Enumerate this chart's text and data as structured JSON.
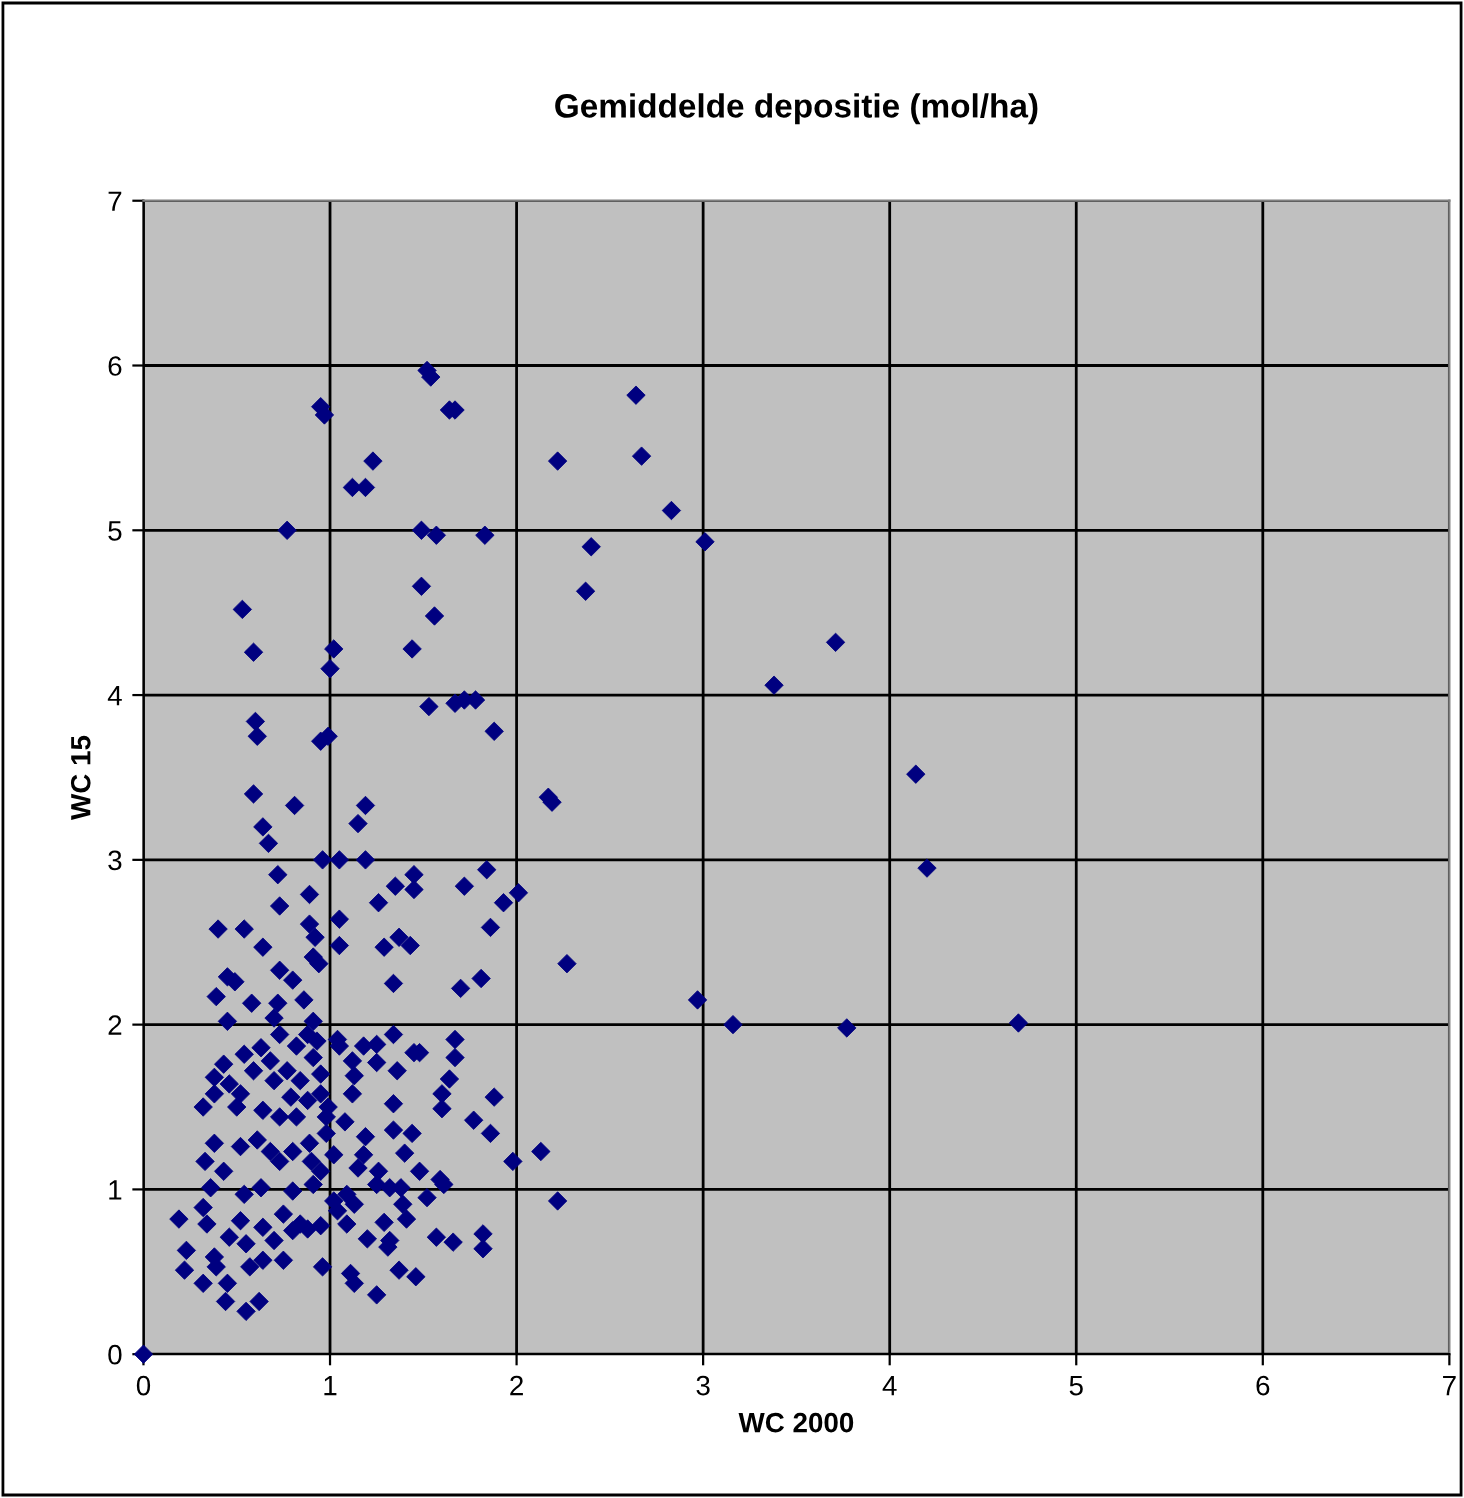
{
  "chart_data": {
    "type": "scatter",
    "title": "Gemiddelde depositie (mol/ha)",
    "xlabel": "WC 2000",
    "ylabel": "WC 15",
    "xlim": [
      0,
      7
    ],
    "ylim": [
      0,
      7
    ],
    "xticks": [
      0,
      1,
      2,
      3,
      4,
      5,
      6,
      7
    ],
    "yticks": [
      0,
      1,
      2,
      3,
      4,
      5,
      6,
      7
    ],
    "grid": true,
    "marker": "diamond",
    "series": [
      {
        "color": "#000080",
        "x": [
          0.95,
          0.97,
          1.52,
          1.54,
          1.64,
          1.67,
          1.23,
          1.12,
          1.19,
          0.77,
          1.49,
          1.57,
          1.83,
          0.53,
          1.49,
          1.56,
          0.59,
          1.02,
          1.44,
          1.0,
          0.99,
          0.95,
          0.6,
          0.61,
          1.53,
          1.67,
          1.72,
          1.78,
          1.88,
          0.59,
          0.81,
          0.64,
          1.19,
          1.15,
          2.22,
          2.64,
          2.67,
          2.4,
          2.37,
          2.83,
          3.01,
          2.17,
          2.19,
          3.38,
          3.71,
          4.14,
          4.2,
          2.97,
          3.16,
          3.77,
          4.69,
          0.67,
          0.72,
          0.96,
          1.05,
          1.19,
          0.73,
          0.89,
          0.4,
          0.54,
          0.64,
          0.89,
          0.92,
          1.05,
          1.05,
          1.26,
          1.35,
          1.45,
          1.45,
          1.29,
          1.37,
          1.43,
          1.72,
          1.84,
          1.93,
          2.01,
          1.86,
          1.81,
          1.7,
          2.27,
          1.34,
          0.91,
          0.94,
          0.73,
          0.45,
          0.49,
          0.39,
          0.45,
          0.58,
          0.7,
          0.8,
          0.86,
          0.91,
          0.72,
          1.04,
          1.05,
          1.18,
          1.25,
          1.12,
          1.13,
          1.25,
          1.34,
          1.36,
          1.45,
          1.48,
          1.67,
          1.67,
          1.64,
          1.6,
          1.6,
          1.88,
          1.77,
          1.86,
          2.13,
          1.98,
          2.22,
          1.59,
          1.61,
          1.52,
          1.57,
          1.66,
          1.82,
          1.82,
          1.34,
          1.34,
          1.44,
          1.19,
          1.12,
          1.08,
          0.99,
          0.98,
          1.02,
          1.4,
          1.48,
          1.18,
          1.15,
          1.26,
          1.25,
          1.32,
          1.38,
          1.39,
          1.41,
          1.29,
          1.32,
          1.31,
          1.37,
          1.46,
          1.2,
          1.09,
          1.11,
          1.13,
          1.25,
          0.96,
          0.95,
          1.04,
          1.09,
          1.13,
          1.02,
          0.91,
          0.9,
          0.89,
          0.95,
          0.98,
          0.95,
          0.95,
          0.91,
          0.93,
          0.88,
          0.82,
          0.73,
          0.63,
          0.54,
          0.43,
          0.38,
          0.46,
          0.52,
          0.5,
          0.32,
          0.38,
          0.64,
          0.73,
          0.82,
          0.88,
          0.79,
          0.7,
          0.77,
          0.68,
          0.84,
          0.59,
          0.52,
          0.61,
          0.68,
          0.8,
          0.73,
          0.38,
          0.33,
          0.43,
          0.36,
          0.54,
          0.63,
          0.8,
          0.75,
          0.64,
          0.52,
          0.32,
          0.34,
          0.19,
          0.46,
          0.55,
          0.7,
          0.8,
          0.88,
          0.84,
          0.23,
          0.22,
          0.38,
          0.39,
          0.32,
          0.45,
          0.44,
          0.55,
          0.62,
          0.64,
          0.75,
          0.57,
          0
        ],
        "values": [
          5.75,
          5.7,
          5.97,
          5.93,
          5.73,
          5.73,
          5.42,
          5.26,
          5.26,
          5.0,
          5.0,
          4.97,
          4.97,
          4.52,
          4.66,
          4.48,
          4.26,
          4.28,
          4.28,
          4.16,
          3.75,
          3.72,
          3.84,
          3.75,
          3.93,
          3.95,
          3.97,
          3.97,
          3.78,
          3.4,
          3.33,
          3.2,
          3.33,
          3.22,
          5.42,
          5.82,
          5.45,
          4.9,
          4.63,
          5.12,
          4.93,
          3.38,
          3.35,
          4.06,
          4.32,
          3.52,
          2.95,
          2.15,
          2.0,
          1.98,
          2.01,
          3.1,
          2.91,
          3.0,
          3.0,
          3.0,
          2.72,
          2.79,
          2.58,
          2.58,
          2.47,
          2.61,
          2.53,
          2.64,
          2.48,
          2.74,
          2.84,
          2.91,
          2.82,
          2.47,
          2.53,
          2.48,
          2.84,
          2.94,
          2.74,
          2.8,
          2.59,
          2.28,
          2.22,
          2.37,
          2.25,
          2.41,
          2.37,
          2.33,
          2.29,
          2.26,
          2.17,
          2.02,
          2.13,
          2.04,
          2.27,
          2.15,
          2.02,
          2.13,
          1.91,
          1.87,
          1.87,
          1.88,
          1.78,
          1.69,
          1.77,
          1.94,
          1.72,
          1.83,
          1.83,
          1.91,
          1.8,
          1.67,
          1.58,
          1.49,
          1.56,
          1.42,
          1.34,
          1.23,
          1.17,
          0.93,
          1.06,
          1.03,
          0.95,
          0.71,
          0.68,
          0.73,
          0.64,
          1.52,
          1.36,
          1.34,
          1.32,
          1.58,
          1.41,
          1.5,
          1.34,
          1.21,
          1.22,
          1.11,
          1.21,
          1.13,
          1.11,
          1.03,
          1.01,
          1.01,
          0.91,
          0.82,
          0.8,
          0.69,
          0.65,
          0.51,
          0.47,
          0.7,
          0.79,
          0.49,
          0.43,
          0.36,
          0.53,
          0.78,
          0.87,
          0.97,
          0.91,
          0.93,
          1.03,
          1.17,
          1.28,
          1.11,
          1.44,
          1.58,
          1.7,
          1.8,
          1.9,
          1.94,
          1.87,
          1.94,
          1.86,
          1.82,
          1.76,
          1.68,
          1.64,
          1.58,
          1.5,
          1.5,
          1.58,
          1.48,
          1.44,
          1.44,
          1.54,
          1.56,
          1.66,
          1.72,
          1.78,
          1.66,
          1.72,
          1.26,
          1.3,
          1.23,
          1.23,
          1.17,
          1.28,
          1.17,
          1.11,
          1.01,
          0.97,
          1.01,
          0.99,
          0.85,
          0.77,
          0.81,
          0.89,
          0.79,
          0.82,
          0.71,
          0.67,
          0.69,
          0.75,
          0.76,
          0.79,
          0.63,
          0.51,
          0.59,
          0.53,
          0.43,
          0.43,
          0.32,
          0.26,
          0.32,
          0.57,
          0.57,
          0.53,
          0
        ]
      }
    ]
  }
}
